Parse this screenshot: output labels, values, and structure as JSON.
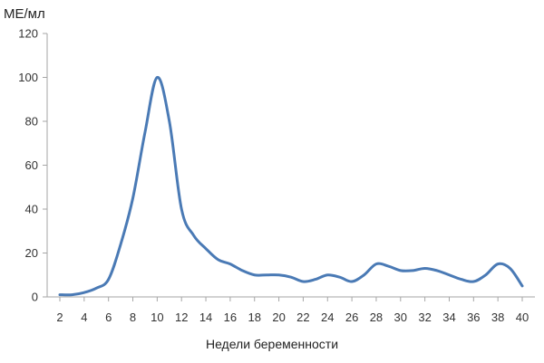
{
  "chart_data": {
    "type": "line",
    "ylabel": "МЕ/мл",
    "xlabel": "Недели беременности",
    "x_ticks": [
      2,
      4,
      6,
      8,
      10,
      12,
      14,
      16,
      18,
      20,
      22,
      24,
      26,
      28,
      30,
      32,
      34,
      36,
      38,
      40
    ],
    "y_ticks": [
      0,
      20,
      40,
      60,
      80,
      100,
      120
    ],
    "xlim": [
      2,
      40
    ],
    "ylim": [
      0,
      120
    ],
    "grid": false,
    "colors": {
      "line": "#4a7ab5",
      "axis": "#a6a6a6"
    },
    "series": [
      {
        "x": [
          2,
          3,
          4,
          5,
          6,
          7,
          8,
          9,
          10,
          11,
          12,
          13,
          14,
          15,
          16,
          17,
          18,
          19,
          20,
          21,
          22,
          23,
          24,
          25,
          26,
          27,
          28,
          29,
          30,
          31,
          32,
          33,
          34,
          35,
          36,
          37,
          38,
          39,
          40
        ],
        "y": [
          1,
          1,
          2,
          4,
          8,
          24,
          45,
          75,
          100,
          80,
          40,
          28,
          22,
          17,
          15,
          12,
          10,
          10,
          10,
          9,
          7,
          8,
          10,
          9,
          7,
          10,
          15,
          14,
          12,
          12,
          13,
          12,
          10,
          8,
          7,
          10,
          15,
          13,
          5
        ]
      }
    ]
  }
}
